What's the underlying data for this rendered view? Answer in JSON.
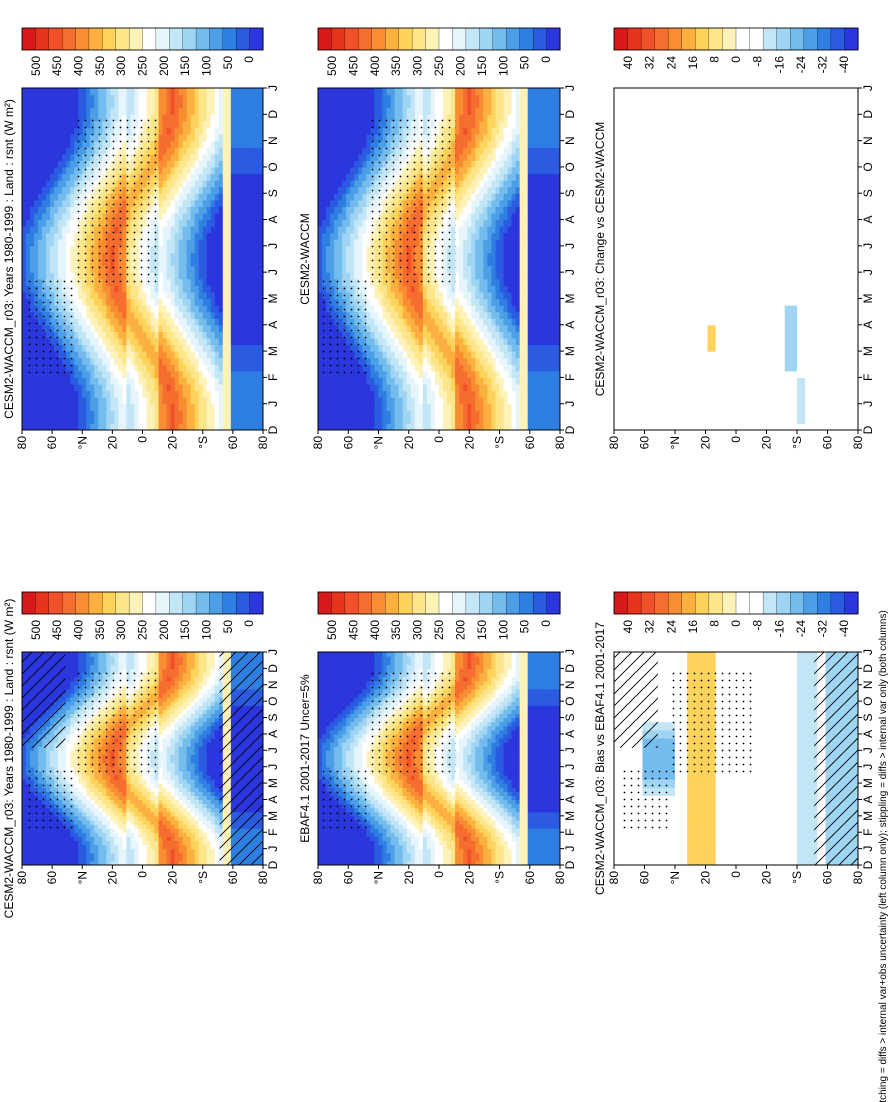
{
  "colors": {
    "abs_palette": [
      "#d7191c",
      "#e8341c",
      "#f0502a",
      "#f56e2f",
      "#f98d32",
      "#fbb040",
      "#fdd35c",
      "#fde58a",
      "#fef2b8",
      "#ffffff",
      "#e5f5fb",
      "#c3e6f7",
      "#9fd4f3",
      "#74bcee",
      "#4c9fe7",
      "#2f7ee2",
      "#2a5be0",
      "#2b36dc"
    ],
    "diff_palette": [
      "#d7191c",
      "#e8341c",
      "#f0502a",
      "#f56e2f",
      "#f98d32",
      "#fbb040",
      "#fdd35c",
      "#fde58a",
      "#fef2b8",
      "#ffffff",
      "#ffffff",
      "#c3e6f7",
      "#9fd4f3",
      "#74bcee",
      "#4c9fe7",
      "#2f7ee2",
      "#2a5be0",
      "#2b36dc"
    ]
  },
  "footnote": "hatching = diffs > internal var+obs uncertainty (left column only); stippling = diffs > internal var only (both columns)",
  "chart_data": [
    {
      "id": "p1",
      "type": "heatmap",
      "title": "CESM2-WACCM_r03: Years 1980-1999 : Land : rsnt (W m²)",
      "x_ticks": [
        "D",
        "J",
        "F",
        "M",
        "A",
        "M",
        "J",
        "J",
        "A",
        "S",
        "O",
        "N",
        "D",
        "J"
      ],
      "y_ticks": [
        "80",
        "60",
        "°N",
        "20",
        "0",
        "20",
        "°S",
        "60",
        "80"
      ],
      "colorbar_labels": [
        "500",
        "450",
        "400",
        "350",
        "300",
        "250",
        "200",
        "150",
        "100",
        "50",
        "0"
      ],
      "value_range": [
        0,
        500
      ],
      "field": "absolute",
      "hatching": true,
      "stippling": true
    },
    {
      "id": "p2",
      "type": "heatmap",
      "title": "CESM2-WACCM_r03: Years 1980-1999 : Land : rsnt (W m²)",
      "x_ticks": [
        "D",
        "J",
        "F",
        "M",
        "A",
        "M",
        "J",
        "J",
        "A",
        "S",
        "O",
        "N",
        "D",
        "J"
      ],
      "y_ticks": [
        "80",
        "60",
        "°N",
        "20",
        "0",
        "20",
        "°S",
        "60",
        "80"
      ],
      "colorbar_labels": [
        "500",
        "450",
        "400",
        "350",
        "300",
        "250",
        "200",
        "150",
        "100",
        "50",
        "0"
      ],
      "value_range": [
        0,
        500
      ],
      "field": "absolute",
      "hatching": false,
      "stippling": true
    },
    {
      "id": "p3",
      "type": "heatmap",
      "title": "EBAF4.1 2001-2017 Uncer=5%",
      "x_ticks": [
        "D",
        "J",
        "F",
        "M",
        "A",
        "M",
        "J",
        "J",
        "A",
        "S",
        "O",
        "N",
        "D",
        "J"
      ],
      "y_ticks": [
        "80",
        "60",
        "°N",
        "20",
        "0",
        "20",
        "°S",
        "60",
        "80"
      ],
      "colorbar_labels": [
        "500",
        "450",
        "400",
        "350",
        "300",
        "250",
        "200",
        "150",
        "100",
        "50",
        "0"
      ],
      "value_range": [
        0,
        500
      ],
      "field": "absolute",
      "hatching": false,
      "stippling": true
    },
    {
      "id": "p4",
      "type": "heatmap",
      "title": "CESM2-WACCM",
      "x_ticks": [
        "D",
        "J",
        "F",
        "M",
        "A",
        "M",
        "J",
        "J",
        "A",
        "S",
        "O",
        "N",
        "D",
        "J"
      ],
      "y_ticks": [
        "80",
        "60",
        "°N",
        "20",
        "0",
        "20",
        "°S",
        "60",
        "80"
      ],
      "colorbar_labels": [
        "500",
        "450",
        "400",
        "350",
        "300",
        "250",
        "200",
        "150",
        "100",
        "50",
        "0"
      ],
      "value_range": [
        0,
        500
      ],
      "field": "absolute",
      "hatching": false,
      "stippling": true
    },
    {
      "id": "p5",
      "type": "heatmap",
      "title": "CESM2-WACCM_r03: Bias vs EBAF4.1 2001-2017",
      "x_ticks": [
        "D",
        "J",
        "F",
        "M",
        "A",
        "M",
        "J",
        "J",
        "A",
        "S",
        "O",
        "N",
        "D",
        "J"
      ],
      "y_ticks": [
        "80",
        "60",
        "°N",
        "20",
        "0",
        "20",
        "°S",
        "60",
        "80"
      ],
      "colorbar_labels": [
        "40",
        "32",
        "24",
        "16",
        "8",
        "0",
        "-8",
        "-16",
        "-24",
        "-32",
        "-40"
      ],
      "value_range": [
        -40,
        40
      ],
      "field": "bias",
      "hatching": true,
      "stippling": true
    },
    {
      "id": "p6",
      "type": "heatmap",
      "title": "CESM2-WACCM_r03: Change vs CESM2-WACCM",
      "x_ticks": [
        "D",
        "J",
        "F",
        "M",
        "A",
        "M",
        "J",
        "J",
        "A",
        "S",
        "O",
        "N",
        "D",
        "J"
      ],
      "y_ticks": [
        "80",
        "60",
        "°N",
        "20",
        "0",
        "20",
        "°S",
        "60",
        "80"
      ],
      "colorbar_labels": [
        "40",
        "32",
        "24",
        "16",
        "8",
        "0",
        "-8",
        "-16",
        "-24",
        "-32",
        "-40"
      ],
      "value_range": [
        -40,
        40
      ],
      "field": "change",
      "hatching": false,
      "stippling": true
    }
  ]
}
